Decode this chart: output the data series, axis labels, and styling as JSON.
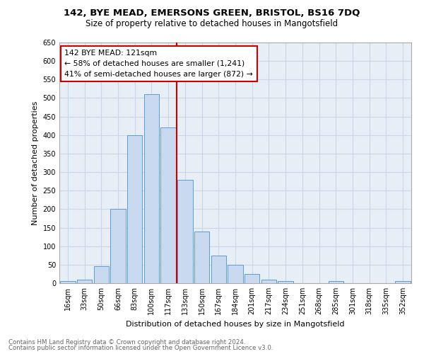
{
  "title1": "142, BYE MEAD, EMERSONS GREEN, BRISTOL, BS16 7DQ",
  "title2": "Size of property relative to detached houses in Mangotsfield",
  "xlabel": "Distribution of detached houses by size in Mangotsfield",
  "ylabel": "Number of detached properties",
  "footer1": "Contains HM Land Registry data © Crown copyright and database right 2024.",
  "footer2": "Contains public sector information licensed under the Open Government Licence v3.0.",
  "categories": [
    "16sqm",
    "33sqm",
    "50sqm",
    "66sqm",
    "83sqm",
    "100sqm",
    "117sqm",
    "133sqm",
    "150sqm",
    "167sqm",
    "184sqm",
    "201sqm",
    "217sqm",
    "234sqm",
    "251sqm",
    "268sqm",
    "285sqm",
    "301sqm",
    "318sqm",
    "335sqm",
    "352sqm"
  ],
  "values": [
    5,
    10,
    45,
    200,
    400,
    510,
    420,
    280,
    140,
    75,
    50,
    25,
    10,
    5,
    0,
    0,
    5,
    0,
    0,
    0,
    5
  ],
  "bar_color": "#c9d9ef",
  "bar_edge_color": "#5b9bd5",
  "grid_color": "#c8d8ea",
  "vline_color": "#cc0000",
  "vline_x_index": 6.5,
  "annotation_text": "142 BYE MEAD: 121sqm\n← 58% of detached houses are smaller (1,241)\n41% of semi-detached houses are larger (872) →",
  "annotation_box_edge": "#cc0000",
  "ylim": [
    0,
    650
  ],
  "yticks": [
    0,
    50,
    100,
    150,
    200,
    250,
    300,
    350,
    400,
    450,
    500,
    550,
    600,
    650
  ],
  "bg_color": "#e8eef5"
}
